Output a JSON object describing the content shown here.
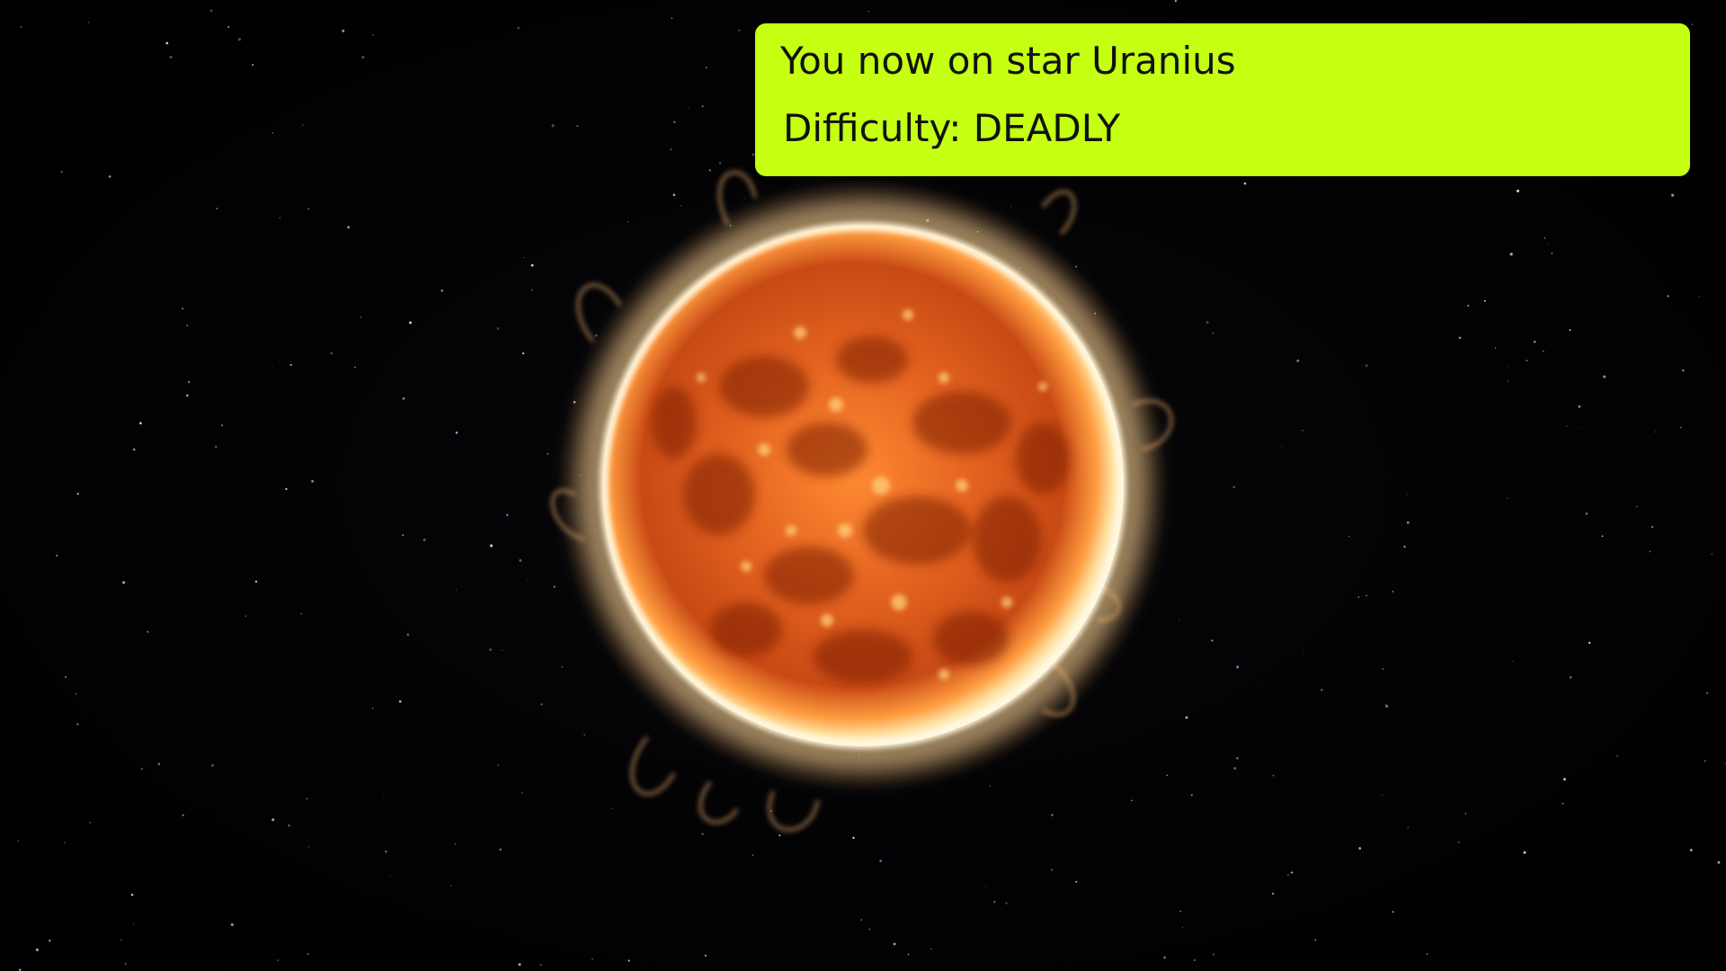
{
  "hud": {
    "location_text": "You now on star Uranius",
    "difficulty_text": "Difficulty: DEADLY",
    "panel_color": "#c5ff12"
  },
  "scene": {
    "background": "starfield",
    "object": "burning-star",
    "star_colors": {
      "corona": "#fff2c8",
      "surface": "#e0581a",
      "spots": "#7a1d06"
    }
  }
}
